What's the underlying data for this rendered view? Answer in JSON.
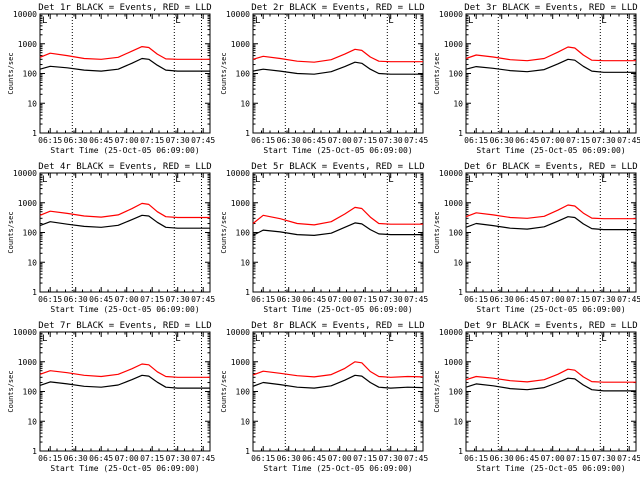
{
  "colors": {
    "events": "#000000",
    "lld": "#ff0000",
    "axis": "#000000",
    "background": "#ffffff"
  },
  "chart_data": [
    {
      "type": "line",
      "title": "Det 1r BLACK = Events, RED = LLD",
      "xlabel": "Start Time (25-Oct-05 06:09:00)",
      "ylabel": "Counts/sec",
      "y_scale": "log",
      "ylim": [
        1,
        10000
      ],
      "y_ticks": [
        "1",
        "10",
        "100",
        "1000",
        "10000"
      ],
      "x_ticks": [
        "06:15",
        "06:30",
        "06:45",
        "07:00",
        "07:15",
        "07:30",
        "07:45"
      ],
      "xlim": [
        "06:09",
        "07:49"
      ],
      "marker_lines": [
        "06:28",
        "07:28",
        "07:44"
      ],
      "corner_mark": "L",
      "grid": false,
      "x": [
        "06:09",
        "06:15",
        "06:25",
        "06:35",
        "06:45",
        "06:55",
        "07:03",
        "07:09",
        "07:13",
        "07:18",
        "07:23",
        "07:30",
        "07:40",
        "07:49"
      ],
      "series": [
        {
          "name": "Events",
          "values": [
            140,
            175,
            155,
            130,
            120,
            140,
            220,
            320,
            300,
            190,
            130,
            120,
            120,
            120
          ]
        },
        {
          "name": "LLD",
          "values": [
            350,
            480,
            400,
            320,
            300,
            350,
            560,
            800,
            750,
            450,
            310,
            300,
            300,
            300
          ]
        }
      ]
    },
    {
      "type": "line",
      "title": "Det 2r BLACK = Events, RED = LLD",
      "xlabel": "Start Time (25-Oct-05 06:09:00)",
      "ylabel": "Counts/sec",
      "y_scale": "log",
      "ylim": [
        1,
        10000
      ],
      "y_ticks": [
        "1",
        "10",
        "100",
        "1000",
        "10000"
      ],
      "x_ticks": [
        "06:15",
        "06:30",
        "06:45",
        "07:00",
        "07:15",
        "07:30",
        "07:45"
      ],
      "xlim": [
        "06:09",
        "07:49"
      ],
      "marker_lines": [
        "06:28",
        "07:28",
        "07:44"
      ],
      "corner_mark": "L",
      "grid": false,
      "x": [
        "06:09",
        "06:15",
        "06:25",
        "06:35",
        "06:45",
        "06:55",
        "07:03",
        "07:09",
        "07:13",
        "07:18",
        "07:23",
        "07:30",
        "07:40",
        "07:49"
      ],
      "series": [
        {
          "name": "Events",
          "values": [
            120,
            140,
            120,
            100,
            95,
            115,
            170,
            240,
            220,
            140,
            100,
            95,
            95,
            95
          ]
        },
        {
          "name": "LLD",
          "values": [
            300,
            380,
            320,
            260,
            240,
            290,
            450,
            650,
            600,
            360,
            260,
            250,
            250,
            250
          ]
        }
      ]
    },
    {
      "type": "line",
      "title": "Det 3r BLACK = Events, RED = LLD",
      "xlabel": "Start Time (25-Oct-05 06:09:00)",
      "ylabel": "Counts/sec",
      "y_scale": "log",
      "ylim": [
        1,
        10000
      ],
      "y_ticks": [
        "1",
        "10",
        "100",
        "1000",
        "10000"
      ],
      "x_ticks": [
        "06:15",
        "06:30",
        "06:45",
        "07:00",
        "07:15",
        "07:30",
        "07:45"
      ],
      "xlim": [
        "06:09",
        "07:49"
      ],
      "marker_lines": [
        "06:28",
        "07:28",
        "07:44"
      ],
      "corner_mark": "L",
      "grid": false,
      "x": [
        "06:09",
        "06:15",
        "06:25",
        "06:35",
        "06:45",
        "06:55",
        "07:03",
        "07:09",
        "07:13",
        "07:18",
        "07:23",
        "07:30",
        "07:40",
        "07:49"
      ],
      "series": [
        {
          "name": "Events",
          "values": [
            140,
            170,
            150,
            125,
            115,
            135,
            210,
            300,
            280,
            175,
            120,
            110,
            110,
            110
          ]
        },
        {
          "name": "LLD",
          "values": [
            320,
            420,
            360,
            290,
            270,
            320,
            520,
            780,
            720,
            420,
            280,
            270,
            270,
            270
          ]
        }
      ]
    },
    {
      "type": "line",
      "title": "Det 4r BLACK = Events, RED = LLD",
      "xlabel": "Start Time (25-Oct-05 06:09:00)",
      "ylabel": "Counts/sec",
      "y_scale": "log",
      "ylim": [
        1,
        10000
      ],
      "y_ticks": [
        "1",
        "10",
        "100",
        "1000",
        "10000"
      ],
      "x_ticks": [
        "06:15",
        "06:30",
        "06:45",
        "07:00",
        "07:15",
        "07:30",
        "07:45"
      ],
      "xlim": [
        "06:09",
        "07:49"
      ],
      "marker_lines": [
        "06:28",
        "07:28",
        "07:44"
      ],
      "corner_mark": "L",
      "grid": false,
      "x": [
        "06:09",
        "06:15",
        "06:25",
        "06:35",
        "06:45",
        "06:55",
        "07:03",
        "07:09",
        "07:13",
        "07:18",
        "07:23",
        "07:30",
        "07:40",
        "07:49"
      ],
      "series": [
        {
          "name": "Events",
          "values": [
            170,
            230,
            190,
            160,
            150,
            175,
            270,
            380,
            360,
            220,
            150,
            140,
            140,
            140
          ]
        },
        {
          "name": "LLD",
          "values": [
            380,
            520,
            440,
            360,
            330,
            390,
            630,
            950,
            880,
            500,
            340,
            320,
            320,
            320
          ]
        }
      ]
    },
    {
      "type": "line",
      "title": "Det 5r BLACK = Events, RED = LLD",
      "xlabel": "Start Time (25-Oct-05 06:09:00)",
      "ylabel": "Counts/sec",
      "y_scale": "log",
      "ylim": [
        1,
        10000
      ],
      "y_ticks": [
        "1",
        "10",
        "100",
        "1000",
        "10000"
      ],
      "x_ticks": [
        "06:15",
        "06:30",
        "06:45",
        "07:00",
        "07:15",
        "07:30",
        "07:45"
      ],
      "xlim": [
        "06:09",
        "07:49"
      ],
      "marker_lines": [
        "06:28",
        "07:28",
        "07:44"
      ],
      "corner_mark": "L",
      "grid": false,
      "x": [
        "06:09",
        "06:15",
        "06:25",
        "06:35",
        "06:45",
        "06:55",
        "07:03",
        "07:09",
        "07:13",
        "07:18",
        "07:23",
        "07:30",
        "07:40",
        "07:49"
      ],
      "series": [
        {
          "name": "Events",
          "values": [
            80,
            120,
            105,
            85,
            80,
            95,
            150,
            210,
            195,
            125,
            90,
            85,
            85,
            85
          ]
        },
        {
          "name": "LLD",
          "values": [
            200,
            380,
            290,
            200,
            180,
            230,
            420,
            700,
            640,
            330,
            200,
            190,
            190,
            190
          ]
        }
      ]
    },
    {
      "type": "line",
      "title": "Det 6r BLACK = Events, RED = LLD",
      "xlabel": "Start Time (25-Oct-05 06:09:00)",
      "ylabel": "Counts/sec",
      "y_scale": "log",
      "ylim": [
        1,
        10000
      ],
      "y_ticks": [
        "1",
        "10",
        "100",
        "1000",
        "10000"
      ],
      "x_ticks": [
        "06:15",
        "06:30",
        "06:45",
        "07:00",
        "07:15",
        "07:30",
        "07:45"
      ],
      "xlim": [
        "06:09",
        "07:49"
      ],
      "marker_lines": [
        "06:28",
        "07:28",
        "07:44"
      ],
      "corner_mark": "L",
      "grid": false,
      "x": [
        "06:09",
        "06:15",
        "06:25",
        "06:35",
        "06:45",
        "06:55",
        "07:03",
        "07:09",
        "07:13",
        "07:18",
        "07:23",
        "07:30",
        "07:40",
        "07:49"
      ],
      "series": [
        {
          "name": "Events",
          "values": [
            150,
            200,
            170,
            140,
            130,
            155,
            240,
            340,
            320,
            195,
            135,
            125,
            125,
            125
          ]
        },
        {
          "name": "LLD",
          "values": [
            340,
            460,
            390,
            320,
            300,
            350,
            560,
            840,
            780,
            450,
            305,
            290,
            290,
            290
          ]
        }
      ]
    },
    {
      "type": "line",
      "title": "Det 7r BLACK = Events, RED = LLD",
      "xlabel": "Start Time (25-Oct-05 06:09:00)",
      "ylabel": "Counts/sec",
      "y_scale": "log",
      "ylim": [
        1,
        10000
      ],
      "y_ticks": [
        "1",
        "10",
        "100",
        "1000",
        "10000"
      ],
      "x_ticks": [
        "06:15",
        "06:30",
        "06:45",
        "07:00",
        "07:15",
        "07:30",
        "07:45"
      ],
      "xlim": [
        "06:09",
        "07:49"
      ],
      "marker_lines": [
        "06:28",
        "07:28",
        "07:44"
      ],
      "corner_mark": "L",
      "grid": false,
      "x": [
        "06:09",
        "06:15",
        "06:25",
        "06:35",
        "06:45",
        "06:55",
        "07:03",
        "07:09",
        "07:13",
        "07:18",
        "07:23",
        "07:30",
        "07:40",
        "07:49"
      ],
      "series": [
        {
          "name": "Events",
          "values": [
            160,
            210,
            180,
            150,
            140,
            165,
            250,
            350,
            330,
            205,
            140,
            130,
            130,
            130
          ]
        },
        {
          "name": "LLD",
          "values": [
            380,
            500,
            430,
            350,
            320,
            380,
            580,
            840,
            790,
            460,
            320,
            300,
            300,
            300
          ]
        }
      ]
    },
    {
      "type": "line",
      "title": "Det 8r BLACK = Events, RED = LLD",
      "xlabel": "Start Time (25-Oct-05 06:09:00)",
      "ylabel": "Counts/sec",
      "y_scale": "log",
      "ylim": [
        1,
        10000
      ],
      "y_ticks": [
        "1",
        "10",
        "100",
        "1000",
        "10000"
      ],
      "x_ticks": [
        "06:15",
        "06:30",
        "06:45",
        "07:00",
        "07:15",
        "07:30",
        "07:45"
      ],
      "xlim": [
        "06:09",
        "07:49"
      ],
      "marker_lines": [
        "06:28",
        "07:28",
        "07:44"
      ],
      "corner_mark": "L",
      "grid": false,
      "x": [
        "06:09",
        "06:15",
        "06:25",
        "06:35",
        "06:45",
        "06:55",
        "07:03",
        "07:09",
        "07:13",
        "07:18",
        "07:23",
        "07:30",
        "07:40",
        "07:49"
      ],
      "series": [
        {
          "name": "Events",
          "values": [
            150,
            200,
            170,
            140,
            130,
            155,
            240,
            350,
            330,
            200,
            140,
            130,
            140,
            135
          ]
        },
        {
          "name": "LLD",
          "values": [
            360,
            480,
            410,
            340,
            310,
            370,
            600,
            1000,
            920,
            470,
            320,
            300,
            320,
            310
          ]
        }
      ]
    },
    {
      "type": "line",
      "title": "Det 9r BLACK = Events, RED = LLD",
      "xlabel": "Start Time (25-Oct-05 06:09:00)",
      "ylabel": "Counts/sec",
      "y_scale": "log",
      "ylim": [
        1,
        10000
      ],
      "y_ticks": [
        "1",
        "10",
        "100",
        "1000",
        "10000"
      ],
      "x_ticks": [
        "06:15",
        "06:30",
        "06:45",
        "07:00",
        "07:15",
        "07:30",
        "07:45"
      ],
      "xlim": [
        "06:09",
        "07:49"
      ],
      "marker_lines": [
        "06:28",
        "07:28",
        "07:44"
      ],
      "corner_mark": "L",
      "grid": false,
      "x": [
        "06:09",
        "06:15",
        "06:25",
        "06:35",
        "06:45",
        "06:55",
        "07:03",
        "07:09",
        "07:13",
        "07:18",
        "07:23",
        "07:30",
        "07:40",
        "07:49"
      ],
      "series": [
        {
          "name": "Events",
          "values": [
            140,
            180,
            155,
            125,
            115,
            135,
            200,
            280,
            265,
            165,
            115,
            105,
            105,
            105
          ]
        },
        {
          "name": "LLD",
          "values": [
            250,
            320,
            280,
            230,
            210,
            250,
            380,
            560,
            520,
            310,
            215,
            205,
            205,
            205
          ]
        }
      ]
    }
  ]
}
